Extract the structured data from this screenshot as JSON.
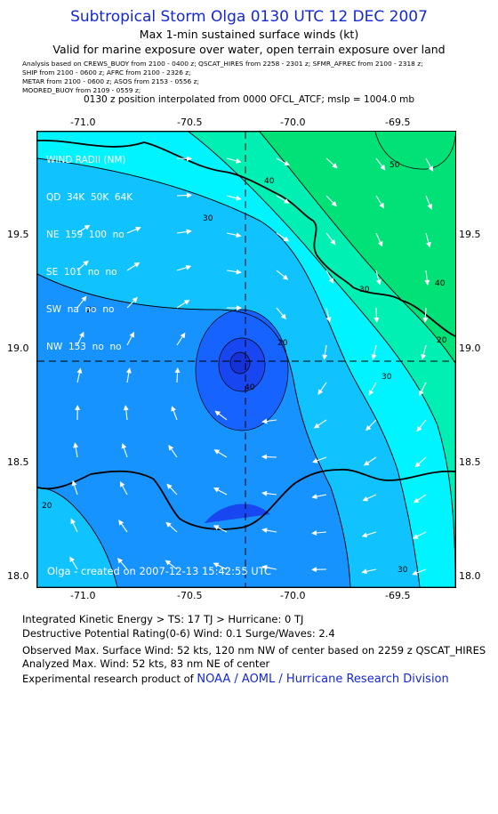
{
  "header": {
    "title": "Subtropical Storm Olga 0130 UTC 12 DEC 2007",
    "subtitle1": "Max 1-min sustained surface winds (kt)",
    "subtitle2": "Valid for marine exposure over water, open terrain exposure over land",
    "sources": [
      "Analysis based on  CREWS_BUOY from 2100 - 0400 z;  QSCAT_HIRES from 2258 - 2301 z;  SFMR_AFREC from 2100 - 2318 z;",
      "SHIP from 2100 - 0600 z;  AFRC from 2100 - 2326 z;",
      "METAR from 2100 - 0600 z;  ASOS from 2153 - 0556 z;",
      "MOORED_BUOY from 2109 - 0559 z;"
    ],
    "interp_note": "0130 z position interpolated from 0000 OFCL_ATCF; mslp = 1004.0 mb"
  },
  "map": {
    "lon_ticks": [
      "-71.0",
      "-70.5",
      "-70.0",
      "-69.5"
    ],
    "lat_ticks": [
      "19.5",
      "19.0",
      "18.5",
      "18.0"
    ],
    "lon_range": [
      -71.2,
      -69.3
    ],
    "lat_range": [
      17.95,
      19.95
    ],
    "center": {
      "lon": -70.2,
      "lat": 18.95
    },
    "contour_labels": [
      "50",
      "40",
      "30",
      "20",
      "40",
      "20",
      "30",
      "40",
      "30",
      "20",
      "20",
      "30"
    ],
    "wind_radii": {
      "title": "WIND RADII (NM)",
      "header": [
        "QD",
        "34K",
        "50K",
        "64K"
      ],
      "rows": [
        [
          "NE",
          "159",
          "100",
          "no"
        ],
        [
          "SE",
          "101",
          "no",
          "no"
        ],
        [
          "SW",
          "na",
          "no",
          "no"
        ],
        [
          "NW",
          "153",
          "no",
          "no"
        ]
      ]
    },
    "credit": "Olga - created on 2007-12-13 15:42:55 UTC",
    "colors": {
      "c20": "#1763ff",
      "c30": "#1793ff",
      "c40": "#10c3ff",
      "c50": "#00f4ff",
      "c60": "#00f0b4",
      "c70": "#00e278",
      "core": "#1846f0",
      "core2": "#1532d8"
    }
  },
  "footer": {
    "ike": "Integrated Kinetic Energy > TS: 17 TJ   > Hurricane: 0 TJ",
    "dpr": "Destructive Potential Rating(0-6)   Wind: 0.1 Surge/Waves: 2.4",
    "obs": "Observed Max. Surface Wind: 52 kts, 120 nm NW of center based on 2259 z QSCAT_HIRES",
    "analyzed": "Analyzed Max. Wind: 52 kts, 83 nm NE of center",
    "product_prefix": "Experimental research product of ",
    "product_org": "NOAA / AOML / Hurricane Research Division"
  }
}
